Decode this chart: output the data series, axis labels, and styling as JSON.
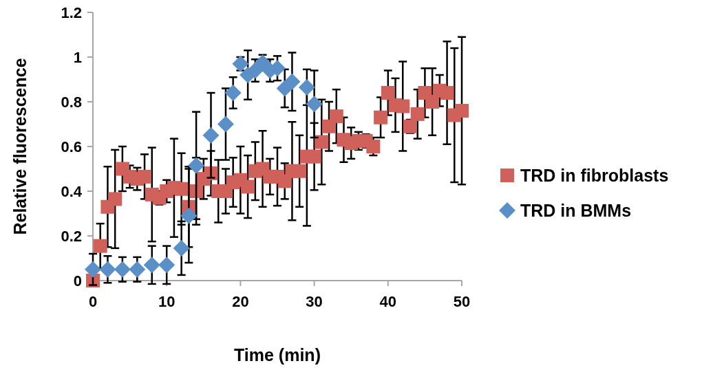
{
  "chart_data": {
    "type": "scatter",
    "xlabel": "Time (min)",
    "ylabel": "Relative fluorescence",
    "xlim": [
      0,
      50
    ],
    "xticks": [
      0,
      10,
      20,
      30,
      40,
      50
    ],
    "ylim": [
      0,
      1.2
    ],
    "yticks": [
      {
        "value": 0,
        "label": "0"
      },
      {
        "value": 0.2,
        "label": "0.2"
      },
      {
        "value": 0.4,
        "label": "0.4"
      },
      {
        "value": 0.6,
        "label": "0.6"
      },
      {
        "value": 0.8,
        "label": "0.8"
      },
      {
        "value": 1,
        "label": "1"
      },
      {
        "value": 1.2,
        "label": "1.2"
      }
    ],
    "grid": false,
    "legend": "right",
    "series": [
      {
        "name": "TRD in fibroblasts",
        "color": "#d0605a",
        "marker": "square",
        "x": [
          0,
          1,
          2,
          3,
          4,
          5,
          6,
          7,
          8,
          9,
          10,
          11,
          12,
          13,
          14,
          15,
          16,
          17,
          18,
          19,
          20,
          21,
          22,
          23,
          24,
          25,
          26,
          27,
          28,
          29,
          30,
          31,
          32,
          33,
          34,
          35,
          36,
          37,
          38,
          39,
          40,
          41,
          42,
          43,
          44,
          45,
          46,
          47,
          48,
          49,
          50
        ],
        "values": [
          0,
          0.155,
          0.33,
          0.365,
          0.5,
          0.465,
          0.455,
          0.465,
          0.385,
          0.37,
          0.4,
          0.415,
          0.41,
          0.33,
          0.4,
          0.455,
          0.48,
          0.4,
          0.4,
          0.44,
          0.45,
          0.42,
          0.49,
          0.5,
          0.465,
          0.465,
          0.445,
          0.49,
          0.49,
          0.555,
          0.555,
          0.62,
          0.69,
          0.735,
          0.63,
          0.615,
          0.625,
          0.625,
          0.6,
          0.73,
          0.84,
          0.785,
          0.78,
          0.69,
          0.745,
          0.84,
          0.8,
          0.85,
          0.84,
          0.74,
          0.76
        ],
        "errors": [
          null,
          0.1,
          0.18,
          0.22,
          0.1,
          0.05,
          0.05,
          0.1,
          0.21,
          0.03,
          0.05,
          0.22,
          0.16,
          0.18,
          0.15,
          0.09,
          0.1,
          0.14,
          0.1,
          0.11,
          0.15,
          0.14,
          0.13,
          0.17,
          0.08,
          0.13,
          0.08,
          0.22,
          0.16,
          0.31,
          0.15,
          0.19,
          0.11,
          0.12,
          0.1,
          0.07,
          0.04,
          0.03,
          0.04,
          0.09,
          0.1,
          0.12,
          0.2,
          0.03,
          0.11,
          0.11,
          0.15,
          0.07,
          0.23,
          0.3,
          0.33
        ]
      },
      {
        "name": "TRD in BMMs",
        "color": "#5b8fc8",
        "marker": "diamond",
        "x": [
          0,
          2,
          4,
          6,
          8,
          10,
          12,
          13,
          14,
          16,
          18,
          19,
          20,
          21,
          22,
          23,
          24,
          25,
          26,
          27,
          29,
          30
        ],
        "values": [
          0.05,
          0.05,
          0.05,
          0.05,
          0.07,
          0.07,
          0.145,
          0.29,
          0.515,
          0.65,
          0.7,
          0.84,
          0.97,
          0.92,
          0.94,
          0.975,
          0.94,
          0.95,
          0.86,
          0.89,
          0.865,
          0.79
        ],
        "errors": [
          0.07,
          0.06,
          0.055,
          0.055,
          0.085,
          0.085,
          0.12,
          0.21,
          0.24,
          0.19,
          0.16,
          0.07,
          0.03,
          0.11,
          0.05,
          0.035,
          0.05,
          0.055,
          0.085,
          0.13,
          0.08,
          0.15
        ]
      }
    ]
  }
}
